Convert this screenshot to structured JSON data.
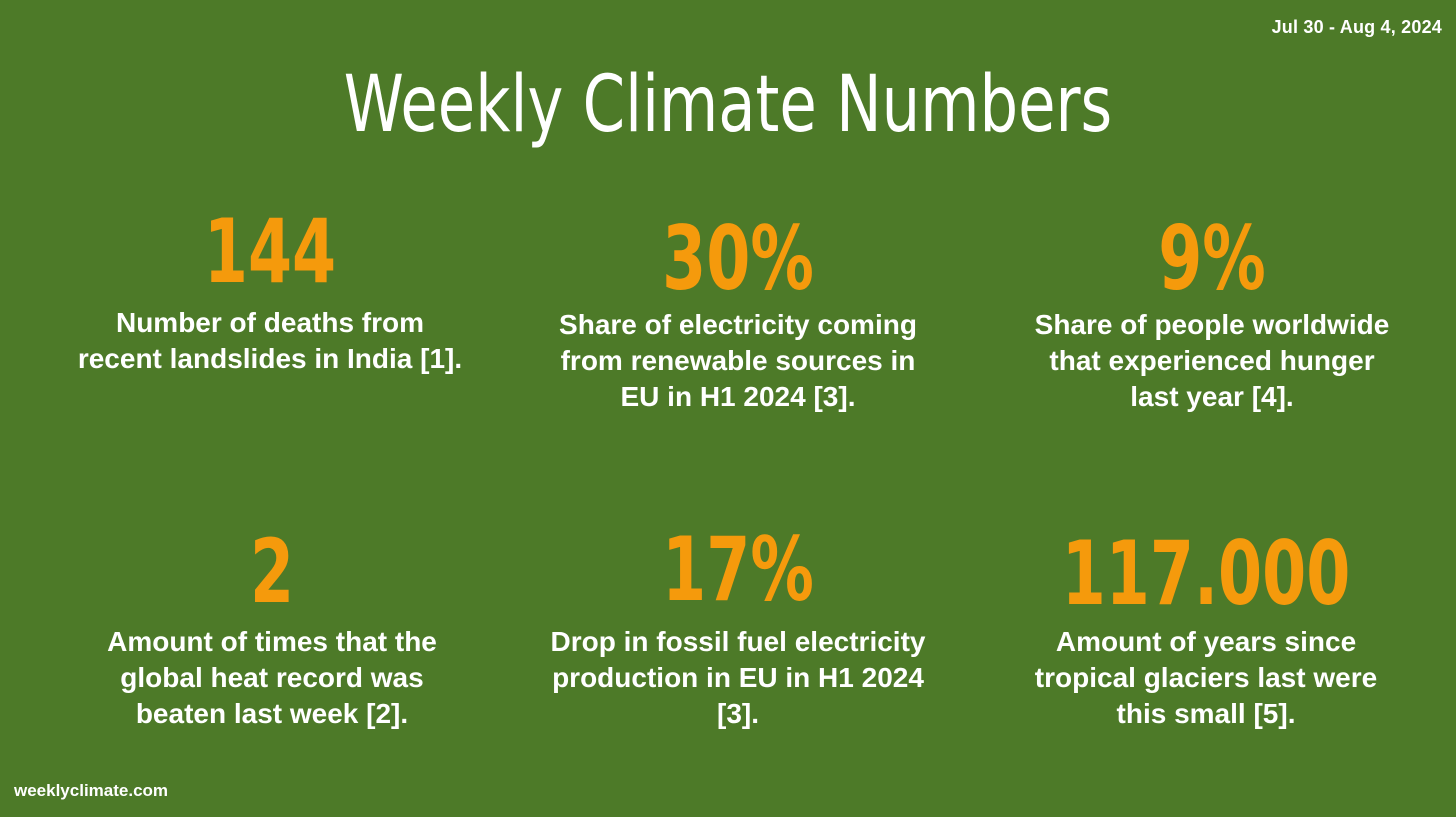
{
  "header": {
    "date_range": "Jul  30 - Aug 4, 2024",
    "title": "Weekly Climate Numbers"
  },
  "stats": [
    {
      "value": "144",
      "description_lines": [
        "Number of deaths from",
        "recent landslides in India [1]."
      ]
    },
    {
      "value": "30%",
      "description_lines": [
        "Share of electricity coming",
        "from renewable sources in",
        "EU in H1 2024 [3]."
      ]
    },
    {
      "value": "9%",
      "description_lines": [
        "Share of people worldwide",
        "that experienced hunger",
        "last year [4]."
      ]
    },
    {
      "value": "2",
      "description_lines": [
        "Amount of times that the",
        "global heat record was",
        "beaten last week [2]."
      ]
    },
    {
      "value": "17%",
      "description_lines": [
        "Drop in fossil fuel electricity",
        "production in EU in H1 2024",
        "[3]."
      ]
    },
    {
      "value": "117.000",
      "description_lines": [
        "Amount of years since",
        "tropical glaciers last were",
        "this small [5]."
      ]
    }
  ],
  "footer": {
    "site": "weeklyclimate.com"
  },
  "colors": {
    "background": "#4d7a28",
    "accent": "#f59a0c",
    "text": "#ffffff"
  }
}
